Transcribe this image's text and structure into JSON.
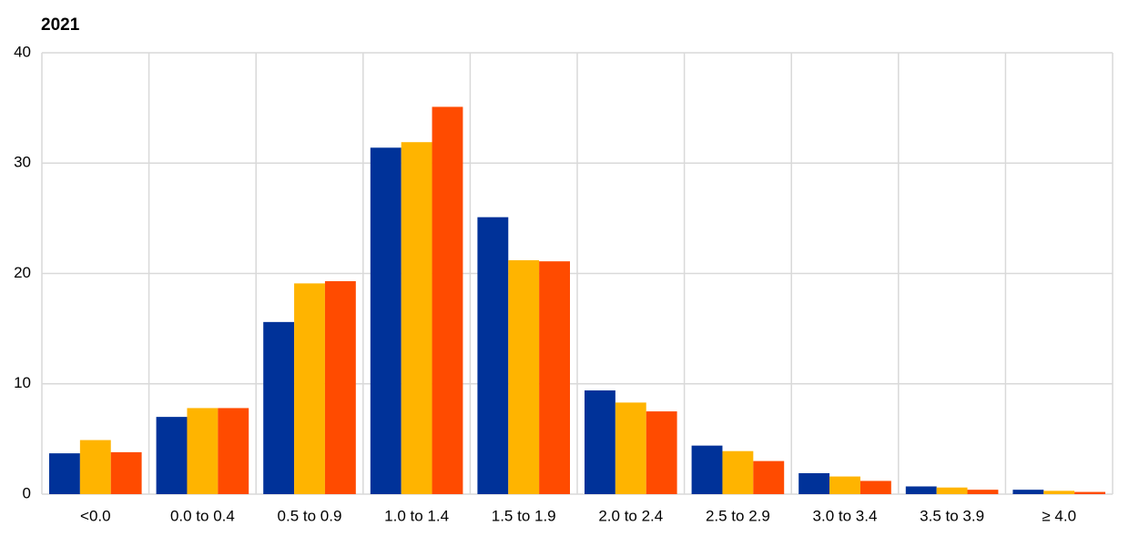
{
  "chart_data": {
    "type": "bar",
    "title": "2021",
    "categories": [
      "<0.0",
      "0.0 to 0.4",
      "0.5 to 0.9",
      "1.0 to 1.4",
      "1.5 to 1.9",
      "2.0 to 2.4",
      "2.5 to 2.9",
      "3.0 to 3.4",
      "3.5 to 3.9",
      "≥ 4.0"
    ],
    "series": [
      {
        "color": "#003299",
        "values": [
          3.7,
          7.0,
          15.6,
          31.4,
          25.1,
          9.4,
          4.4,
          1.9,
          0.7,
          0.4
        ]
      },
      {
        "color": "#ffb400",
        "values": [
          4.9,
          7.8,
          19.1,
          31.9,
          21.2,
          8.3,
          3.9,
          1.6,
          0.6,
          0.3
        ]
      },
      {
        "color": "#ff4b00",
        "values": [
          3.8,
          7.8,
          19.3,
          35.1,
          21.1,
          7.5,
          3.0,
          1.2,
          0.4,
          0.2
        ]
      }
    ],
    "ylim": [
      0,
      40
    ],
    "yticks": [
      0,
      10,
      20,
      30,
      40
    ],
    "grid": true
  }
}
